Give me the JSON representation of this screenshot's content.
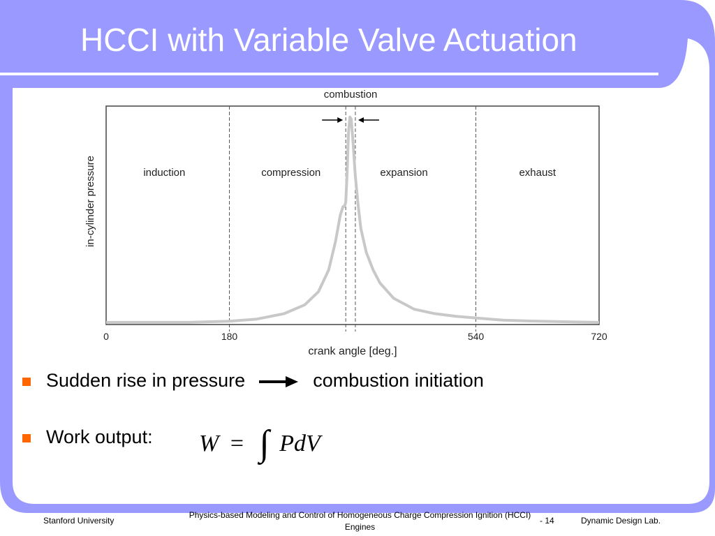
{
  "slide": {
    "title": "HCCI with Variable Valve Actuation",
    "accent_color": "#9999ff",
    "bullet_color": "#ff6600"
  },
  "bullets": [
    {
      "text_before": "Sudden rise in pressure",
      "arrow_icon": "right-arrow-icon",
      "text_after": "combustion initiation"
    },
    {
      "text_before": "Work output:"
    }
  ],
  "formula": {
    "lhs": "W",
    "eq": "=",
    "integral": "∫",
    "rhs": "PdV"
  },
  "footer": {
    "left": "Stanford University",
    "center": "Physics-based Modeling and Control of Homogeneous Charge Compression Ignition (HCCI) Engines",
    "page": "- 14",
    "right": "Dynamic Design Lab."
  },
  "chart_data": {
    "type": "line",
    "xlabel": "crank angle [deg.]",
    "ylabel": "in-cylinder pressure",
    "xlim": [
      0,
      720
    ],
    "ylim": [
      0,
      100
    ],
    "xticks": [
      "0",
      "180",
      "540",
      "720"
    ],
    "xtick_values": [
      0,
      180,
      540,
      720
    ],
    "phase_boundaries": [
      180,
      350,
      364,
      540
    ],
    "phase_labels": [
      {
        "label": "induction",
        "x": 85
      },
      {
        "label": "compression",
        "x": 270
      },
      {
        "label": "expansion",
        "x": 435
      },
      {
        "label": "exhaust",
        "x": 630
      }
    ],
    "annotation": "combustion",
    "line_color": "#c8c8c8",
    "series": [
      {
        "x": [
          0,
          60,
          120,
          180,
          220,
          260,
          290,
          310,
          325,
          335,
          342,
          346,
          348,
          350,
          352,
          354,
          356,
          358,
          360,
          362,
          364,
          368,
          372,
          380,
          390,
          400,
          420,
          450,
          480,
          510,
          540,
          580,
          620,
          680,
          720
        ],
        "y": [
          1,
          1,
          1,
          1.5,
          2.5,
          5,
          9,
          15,
          25,
          38,
          50,
          54,
          54,
          56,
          70,
          88,
          95,
          94,
          86,
          77,
          68,
          55,
          44,
          33,
          25,
          19,
          12,
          7,
          5,
          3.8,
          3,
          2,
          1.6,
          1.2,
          1
        ]
      }
    ]
  }
}
